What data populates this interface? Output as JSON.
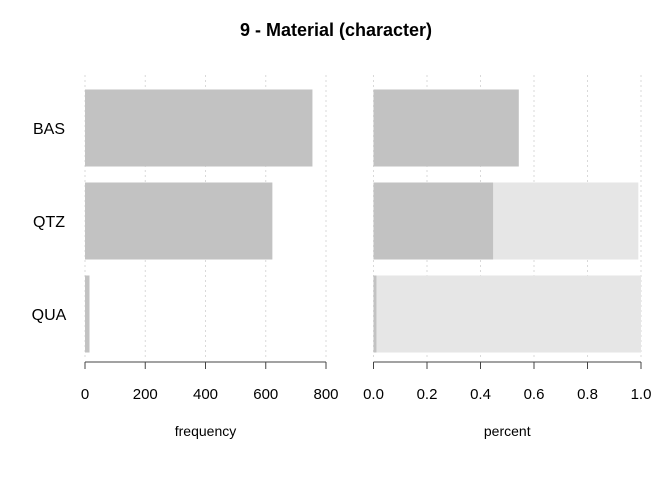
{
  "chart_data": {
    "type": "bar",
    "orientation": "horizontal",
    "title": "9 - Material (character)",
    "categories": [
      "BAS",
      "QTZ",
      "QUA"
    ],
    "panels": [
      {
        "xlabel": "frequency",
        "xlim": [
          0,
          800
        ],
        "ticks": [
          0,
          200,
          400,
          600,
          800
        ],
        "tick_labels": [
          "0",
          "200",
          "400",
          "600",
          "800"
        ],
        "values": [
          755,
          622,
          15
        ]
      },
      {
        "xlabel": "percent",
        "xlim": [
          0,
          1
        ],
        "ticks": [
          0,
          0.2,
          0.4,
          0.6,
          0.8,
          1.0
        ],
        "tick_labels": [
          "0.0",
          "0.2",
          "0.4",
          "0.6",
          "0.8",
          "1.0"
        ],
        "values": [
          0.543,
          0.447,
          0.011
        ],
        "cumulative": [
          0.543,
          0.99,
          1.0
        ]
      }
    ],
    "grid": "vertical-dotted",
    "colors": {
      "bar": "#c2c2c2",
      "cumulative": "#e6e6e6",
      "grid": "#d9d9d9",
      "axis": "#444444",
      "text": "#000000"
    }
  }
}
